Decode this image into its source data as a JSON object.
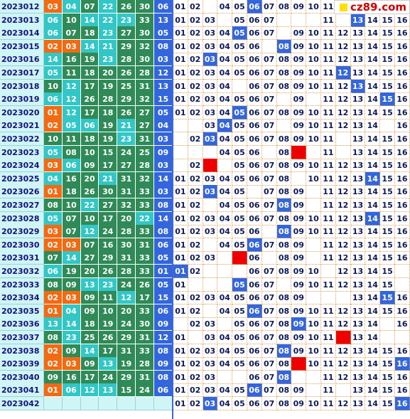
{
  "logo": {
    "text": "cz89.com"
  },
  "colors": {
    "orange": "#f26a12",
    "teal": "#33c6c6",
    "green": "#2f8a57",
    "blue": "#3366dd",
    "red": "#ee0000",
    "cyan": "#cff5f6"
  },
  "red_palette": [
    "orange",
    "orange",
    "orange",
    "teal",
    "teal",
    "teal",
    "green",
    "green",
    "green",
    "green",
    "green",
    "teal",
    "teal",
    "teal",
    "green",
    "green",
    "green",
    "green",
    "green",
    "green",
    "teal",
    "teal",
    "teal",
    "green",
    "green",
    "green",
    "green",
    "green",
    "green",
    "green",
    "green",
    "green",
    "green"
  ],
  "rows": [
    {
      "issue": "2023012",
      "red": [
        "03",
        "04",
        "07",
        "22",
        "26",
        "30"
      ],
      "blue": "06",
      "hits": [
        6,
        15
      ],
      "misses": []
    },
    {
      "issue": "2023013",
      "red": [
        "06",
        "10",
        "14",
        "22",
        "23",
        "33"
      ],
      "blue": "13",
      "hits": [
        13
      ],
      "misses": []
    },
    {
      "issue": "2023014",
      "red": [
        "06",
        "07",
        "18",
        "23",
        "27",
        "30"
      ],
      "blue": "05",
      "hits": [
        5
      ],
      "misses": []
    },
    {
      "issue": "2023015",
      "red": [
        "02",
        "03",
        "14",
        "21",
        "29",
        "32"
      ],
      "blue": "08",
      "hits": [
        8
      ],
      "misses": []
    },
    {
      "issue": "2023016",
      "red": [
        "14",
        "16",
        "19",
        "23",
        "28",
        "30"
      ],
      "blue": "03",
      "hits": [
        3
      ],
      "misses": []
    },
    {
      "issue": "2023017",
      "red": [
        "05",
        "11",
        "18",
        "20",
        "26",
        "28"
      ],
      "blue": "12",
      "hits": [
        12
      ],
      "misses": []
    },
    {
      "issue": "2023018",
      "red": [
        "10",
        "12",
        "17",
        "19",
        "25",
        "31"
      ],
      "blue": "13",
      "hits": [
        13
      ],
      "misses": []
    },
    {
      "issue": "2023019",
      "red": [
        "06",
        "12",
        "26",
        "28",
        "29",
        "32"
      ],
      "blue": "15",
      "hits": [
        15
      ],
      "misses": []
    },
    {
      "issue": "2023020",
      "red": [
        "01",
        "12",
        "17",
        "18",
        "26",
        "27"
      ],
      "blue": "05",
      "hits": [
        5
      ],
      "misses": []
    },
    {
      "issue": "2023021",
      "red": [
        "02",
        "05",
        "06",
        "19",
        "21",
        "27"
      ],
      "blue": "04",
      "hits": [
        4
      ],
      "misses": []
    },
    {
      "issue": "2023022",
      "red": [
        "10",
        "11",
        "18",
        "19",
        "23",
        "31"
      ],
      "blue": "03",
      "hits": [
        3
      ],
      "misses": []
    },
    {
      "issue": "2023023",
      "red": [
        "05",
        "08",
        "10",
        "15",
        "24",
        "25"
      ],
      "blue": "09",
      "hits": [],
      "misses": [
        9
      ]
    },
    {
      "issue": "2023024",
      "red": [
        "03",
        "06",
        "09",
        "17",
        "27",
        "28"
      ],
      "blue": "03",
      "hits": [],
      "misses": [
        3
      ]
    },
    {
      "issue": "2023025",
      "red": [
        "04",
        "16",
        "20",
        "21",
        "31",
        "32"
      ],
      "blue": "14",
      "hits": [
        14
      ],
      "misses": []
    },
    {
      "issue": "2023026",
      "red": [
        "01",
        "18",
        "26",
        "30",
        "31",
        "33"
      ],
      "blue": "03",
      "hits": [
        3
      ],
      "misses": []
    },
    {
      "issue": "2023027",
      "red": [
        "08",
        "10",
        "22",
        "27",
        "32",
        "33"
      ],
      "blue": "08",
      "hits": [
        8
      ],
      "misses": []
    },
    {
      "issue": "2023028",
      "red": [
        "05",
        "07",
        "10",
        "17",
        "20",
        "22"
      ],
      "blue": "14",
      "hits": [
        14
      ],
      "misses": []
    },
    {
      "issue": "2023029",
      "red": [
        "03",
        "07",
        "12",
        "24",
        "28",
        "33"
      ],
      "blue": "08",
      "hits": [
        8
      ],
      "misses": []
    },
    {
      "issue": "2023030",
      "red": [
        "02",
        "03",
        "07",
        "16",
        "30",
        "31"
      ],
      "blue": "06",
      "hits": [
        6
      ],
      "misses": []
    },
    {
      "issue": "2023031",
      "red": [
        "07",
        "14",
        "27",
        "29",
        "31",
        "33"
      ],
      "blue": "05",
      "hits": [],
      "misses": [
        5
      ]
    },
    {
      "issue": "2023032",
      "red": [
        "06",
        "19",
        "20",
        "26",
        "28",
        "33"
      ],
      "blue": "01",
      "hits": [
        1
      ],
      "misses": []
    },
    {
      "issue": "2023033",
      "red": [
        "08",
        "09",
        "13",
        "23",
        "24",
        "26"
      ],
      "blue": "05",
      "hits": [
        5
      ],
      "misses": []
    },
    {
      "issue": "2023034",
      "red": [
        "02",
        "03",
        "09",
        "11",
        "12",
        "17"
      ],
      "blue": "15",
      "hits": [
        15
      ],
      "misses": []
    },
    {
      "issue": "2023035",
      "red": [
        "01",
        "04",
        "09",
        "10",
        "20",
        "33"
      ],
      "blue": "06",
      "hits": [
        6
      ],
      "misses": []
    },
    {
      "issue": "2023036",
      "red": [
        "13",
        "14",
        "18",
        "19",
        "24",
        "30"
      ],
      "blue": "09",
      "hits": [
        9
      ],
      "misses": []
    },
    {
      "issue": "2023037",
      "red": [
        "08",
        "23",
        "25",
        "26",
        "29",
        "31"
      ],
      "blue": "12",
      "hits": [],
      "misses": [
        12
      ]
    },
    {
      "issue": "2023038",
      "red": [
        "02",
        "09",
        "14",
        "17",
        "31",
        "33"
      ],
      "blue": "08",
      "hits": [
        8
      ],
      "misses": []
    },
    {
      "issue": "2023039",
      "red": [
        "02",
        "03",
        "09",
        "13",
        "19",
        "28"
      ],
      "blue": "09",
      "hits": [
        16
      ],
      "misses": [
        9
      ]
    },
    {
      "issue": "2023040",
      "red": [
        "09",
        "16",
        "17",
        "24",
        "29",
        "31"
      ],
      "blue": "08",
      "hits": [
        8
      ],
      "misses": []
    },
    {
      "issue": "2023041",
      "red": [
        "01",
        "06",
        "12",
        "13",
        "15",
        "24"
      ],
      "blue": "06",
      "hits": [
        6
      ],
      "misses": []
    },
    {
      "issue": "2023042",
      "red": [],
      "blue": "",
      "hits": [
        3,
        16
      ],
      "misses": []
    }
  ],
  "blank_cells": {
    "2023012": [
      3,
      12,
      13,
      14,
      15,
      16
    ],
    "2023013": [
      4,
      8,
      9,
      10,
      12
    ],
    "2023014": [
      8
    ],
    "2023015": [
      7
    ],
    "2023018": [
      5
    ],
    "2023019": [
      8,
      10
    ],
    "2023021": [
      1,
      2,
      4,
      8,
      15
    ],
    "2023022": [
      1,
      12
    ],
    "2023023": [
      1,
      2,
      3,
      7,
      10,
      12
    ],
    "2023024": [
      1,
      4
    ],
    "2023025": [
      9
    ],
    "2023026": [
      6,
      10
    ],
    "2023027": [
      3,
      10
    ],
    "2023029": [
      7
    ],
    "2023030": [
      3,
      10
    ],
    "2023031": [
      4,
      7,
      10
    ],
    "2023032": [
      3,
      4,
      5,
      11,
      16
    ],
    "2023033": [
      2,
      3,
      4,
      8,
      16
    ],
    "2023034": [
      10,
      11,
      12
    ],
    "2023035": [
      3
    ],
    "2023036": [
      1,
      4,
      15
    ],
    "2023037": [
      2,
      15,
      16
    ],
    "2023040": [
      4,
      5,
      9,
      10
    ],
    "2023041": [
      10,
      12
    ],
    "2023042": [
      3
    ]
  }
}
